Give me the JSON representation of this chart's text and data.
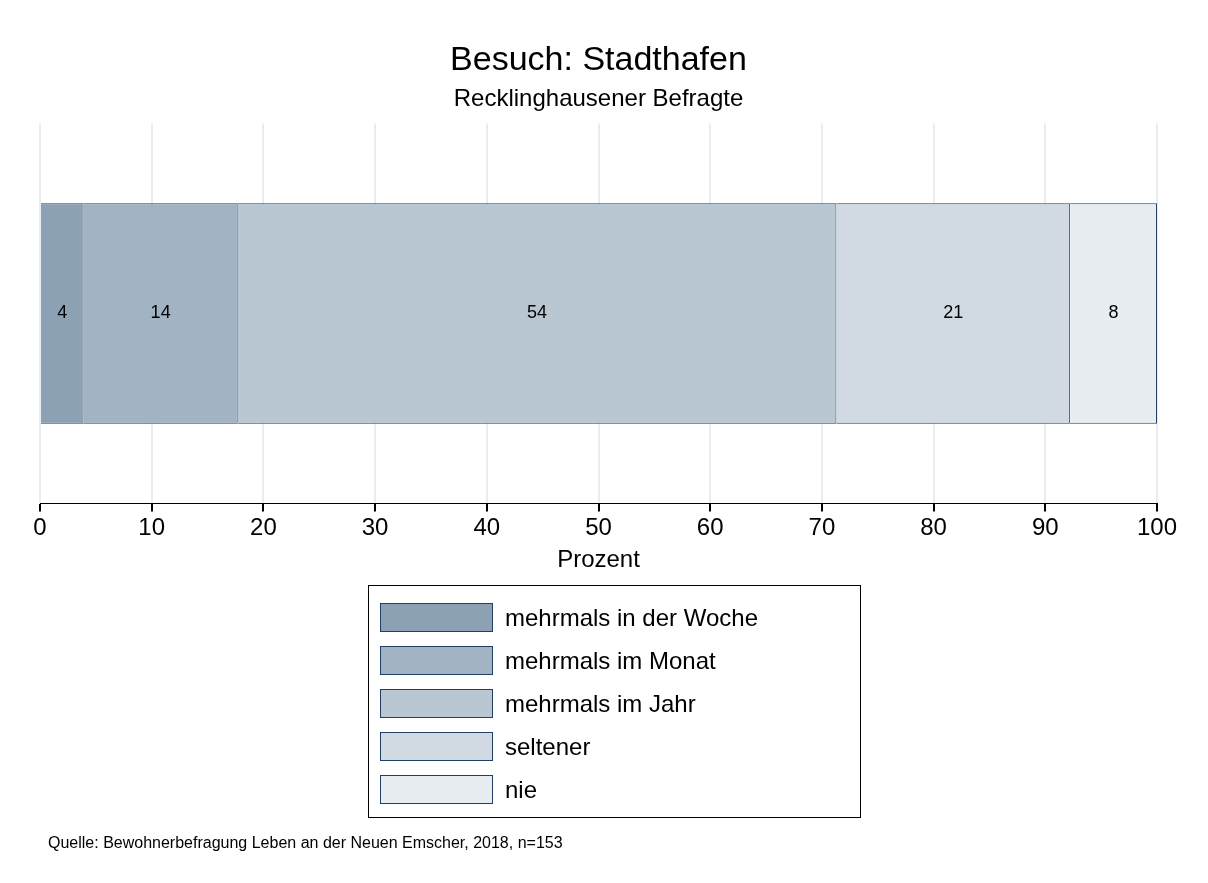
{
  "chart_data": {
    "type": "bar",
    "orientation": "horizontal",
    "stacked": true,
    "title": "Besuch: Stadthafen",
    "subtitle": "Recklinghausener Befragte",
    "xlabel": "Prozent",
    "categories": [
      null
    ],
    "series": [
      {
        "name": "mehrmals in der Woche",
        "color": "#8ca1b4",
        "values": [
          3.9
        ],
        "value_labels": [
          "4"
        ]
      },
      {
        "name": "mehrmals im Monat",
        "color": "#a2b3c4",
        "values": [
          13.8
        ],
        "value_labels": [
          "14"
        ]
      },
      {
        "name": "mehrmals im Jahr",
        "color": "#b9c7d3",
        "values": [
          53.6
        ],
        "value_labels": [
          "54"
        ]
      },
      {
        "name": "seltener",
        "color": "#d1dae3",
        "values": [
          20.9
        ],
        "value_labels": [
          "21"
        ]
      },
      {
        "name": "nie",
        "color": "#e8edf1",
        "values": [
          7.8
        ],
        "value_labels": [
          "8"
        ]
      }
    ],
    "xlim": [
      0,
      100
    ],
    "xticks": [
      0,
      10,
      20,
      30,
      40,
      50,
      60,
      70,
      80,
      90,
      100
    ],
    "grid": "x",
    "legend": "bottom",
    "tick_labels": "x",
    "annotations": [
      "Quelle: Bewohnerbefragung Leben an der Neuen Emscher, 2018, n=153"
    ]
  }
}
